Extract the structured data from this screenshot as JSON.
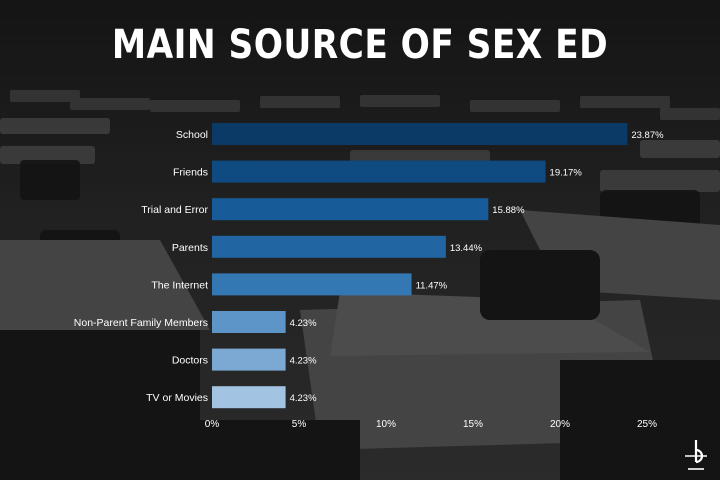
{
  "chart_data": {
    "type": "bar",
    "orientation": "horizontal",
    "title": "MAIN SOURCE OF SEX ED",
    "categories": [
      "School",
      "Friends",
      "Trial and Error",
      "Parents",
      "The Internet",
      "Non-Parent Family Members",
      "Doctors",
      "TV or Movies"
    ],
    "values": [
      23.87,
      19.17,
      15.88,
      13.44,
      11.47,
      4.23,
      4.23,
      4.23
    ],
    "value_labels": [
      "23.87%",
      "19.17%",
      "15.88%",
      "13.44%",
      "11.47%",
      "4.23%",
      "4.23%",
      "4.23%"
    ],
    "xlim": [
      0,
      25
    ],
    "x_ticks": [
      "0%",
      "5%",
      "10%",
      "15%",
      "20%",
      "25%"
    ],
    "bar_colors": [
      "#0b3a66",
      "#0f4a80",
      "#175c99",
      "#2166a3",
      "#3478b3",
      "#5e95c8",
      "#7ba9d3",
      "#a3c3e3"
    ],
    "grid": false,
    "legend": "none"
  }
}
